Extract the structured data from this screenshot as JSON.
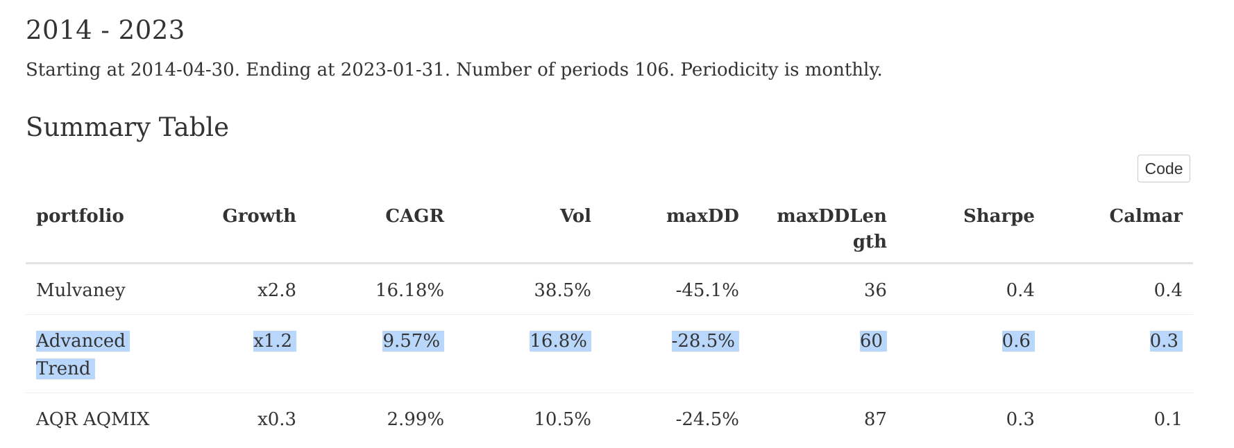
{
  "heading": "2014 - 2023",
  "intro": "Starting at 2014-04-30. Ending at 2023-01-31. Number of periods 106. Periodicity is monthly.",
  "section_title": "Summary Table",
  "code_button": "Code",
  "table": {
    "headers": [
      "portfolio",
      "Growth",
      "CAGR",
      "Vol",
      "maxDD",
      "maxDDLen gth",
      "Sharpe",
      "Calmar"
    ],
    "rows": [
      [
        "Mulvaney",
        "x2.8",
        "16.18%",
        "38.5%",
        "-45.1%",
        "36",
        "0.4",
        "0.4"
      ],
      [
        "Advanced Trend",
        "x1.2",
        "9.57%",
        "16.8%",
        "-28.5%",
        "60",
        "0.6",
        "0.3"
      ],
      [
        "AQR AQMIX",
        "x0.3",
        "2.99%",
        "10.5%",
        "-24.5%",
        "87",
        "0.3",
        "0.1"
      ]
    ],
    "selected_row": 1,
    "selection_color": "#b9d7fa"
  }
}
